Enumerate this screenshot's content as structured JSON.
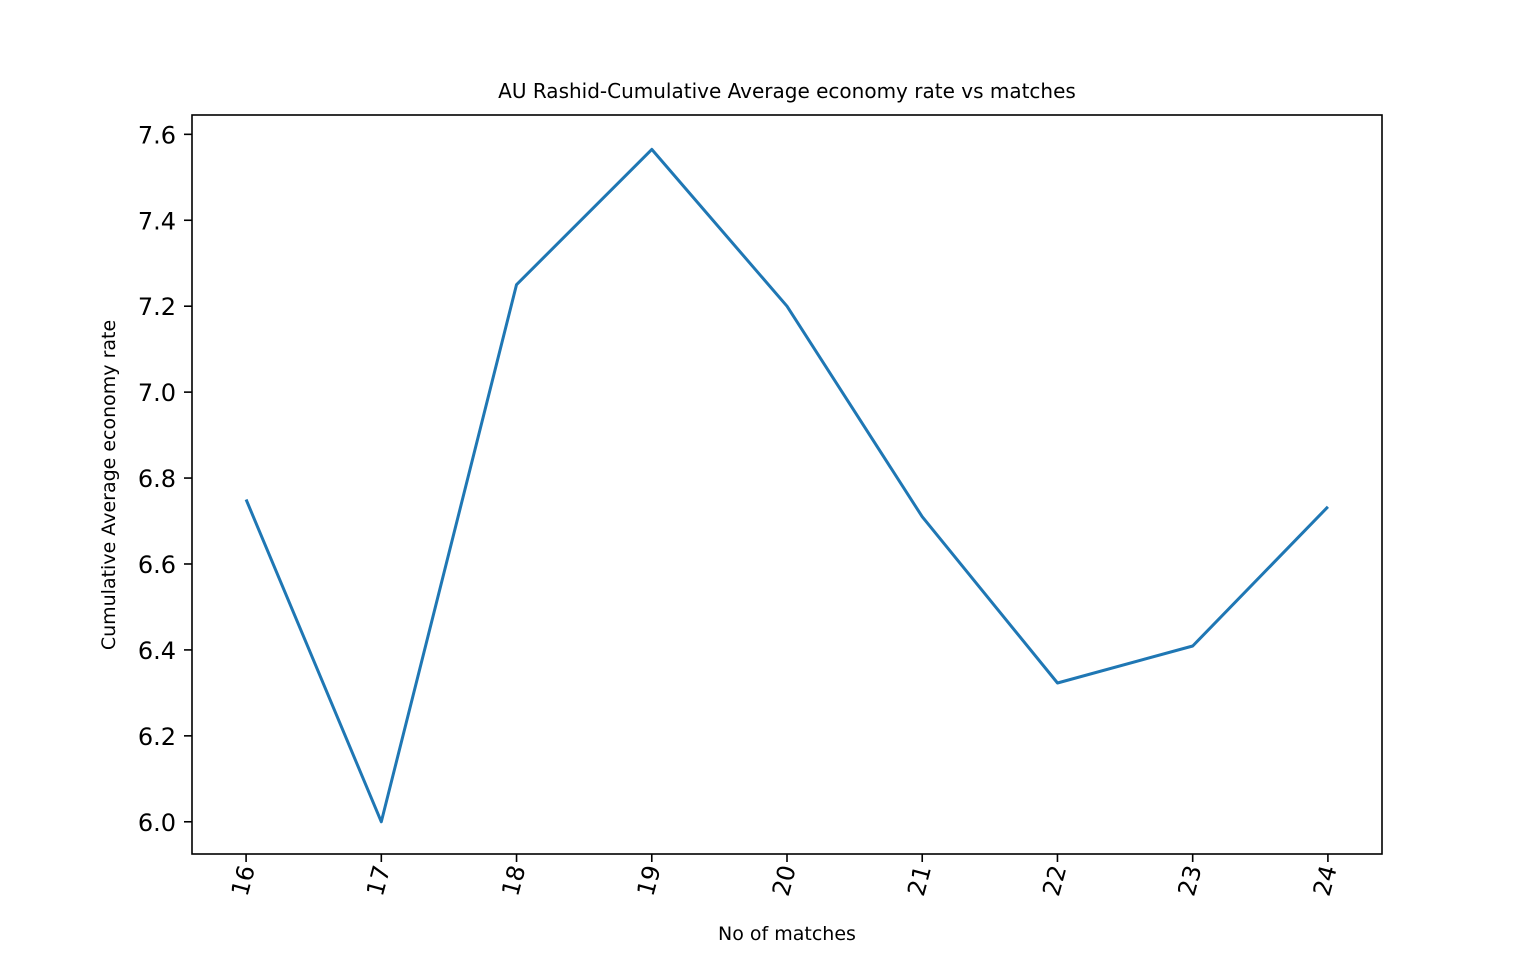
{
  "chart_data": {
    "type": "line",
    "title": "AU Rashid-Cumulative Average economy rate vs matches",
    "xlabel": "No of matches",
    "ylabel": "Cumulative Average economy rate",
    "x": [
      16,
      17,
      18,
      19,
      20,
      21,
      22,
      23,
      24
    ],
    "series": [
      {
        "values": [
          6.75,
          6.0,
          7.25,
          7.565,
          7.2,
          6.71,
          6.323,
          6.409,
          6.733
        ],
        "color": "#1f77b4"
      }
    ],
    "x_ticks": [
      "16",
      "17",
      "18",
      "19",
      "20",
      "21",
      "22",
      "23",
      "24"
    ],
    "y_ticks": [
      "6.0",
      "6.2",
      "6.4",
      "6.6",
      "6.8",
      "7.0",
      "7.2",
      "7.4",
      "7.6"
    ],
    "xlim": [
      15.6,
      24.4
    ],
    "ylim": [
      5.925,
      7.645
    ],
    "x_tick_rotation": "75 degrees",
    "grid": false,
    "legend": "none"
  }
}
